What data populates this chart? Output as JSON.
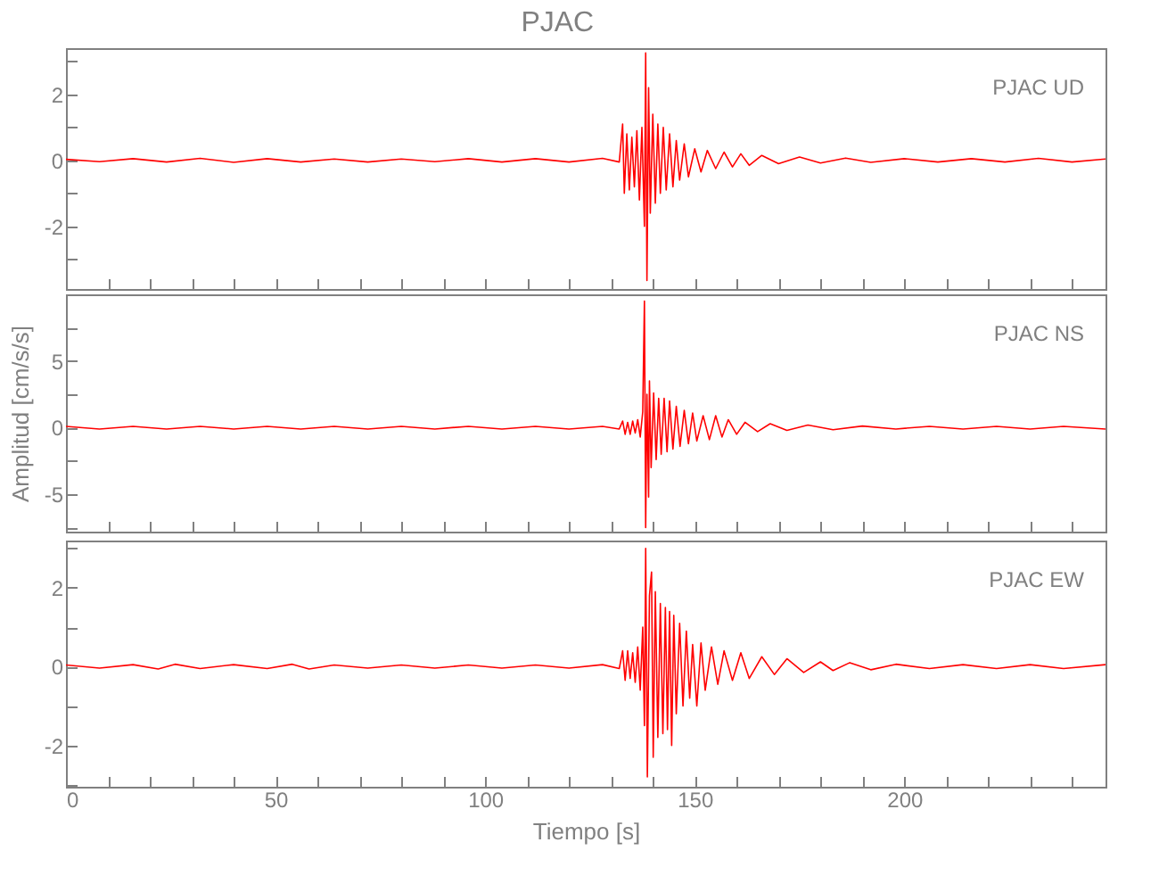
{
  "chart_data": [
    {
      "type": "line",
      "title": "PJAC",
      "annotations": [
        "PJAC   UD"
      ],
      "xlim": [
        0,
        248
      ],
      "ylim": [
        -3.9,
        3.4
      ],
      "tick_labels": "y",
      "xticks": [
        0,
        {
          "value": 10,
          "label": null
        },
        {
          "value": 20,
          "label": null
        },
        {
          "value": 30,
          "label": null
        },
        {
          "value": 40,
          "label": null
        },
        50,
        {
          "value": 60,
          "label": null
        },
        {
          "value": 70,
          "label": null
        },
        {
          "value": 80,
          "label": null
        },
        {
          "value": 90,
          "label": null
        },
        100,
        {
          "value": 110,
          "label": null
        },
        {
          "value": 120,
          "label": null
        },
        {
          "value": 130,
          "label": null
        },
        {
          "value": 140,
          "label": null
        },
        150,
        {
          "value": 160,
          "label": null
        },
        {
          "value": 170,
          "label": null
        },
        {
          "value": 180,
          "label": null
        },
        {
          "value": 190,
          "label": null
        },
        200,
        {
          "value": 210,
          "label": null
        },
        {
          "value": 220,
          "label": null
        },
        {
          "value": 230,
          "label": null
        },
        {
          "value": 240,
          "label": null
        }
      ],
      "yticks": [
        {
          "value": -3,
          "label": null
        },
        -2,
        {
          "value": -1,
          "label": null
        },
        0,
        {
          "value": 1,
          "label": null
        },
        2,
        {
          "value": 3,
          "label": null
        }
      ],
      "x": [
        0,
        8,
        16,
        24,
        32,
        40,
        48,
        56,
        64,
        72,
        80,
        88,
        96,
        104,
        112,
        120,
        128,
        132,
        132.8,
        133.2,
        133.8,
        134.4,
        135,
        135.6,
        136.2,
        136.8,
        137.4,
        138,
        138.3,
        138.6,
        139,
        139.4,
        140,
        140.6,
        141.2,
        141.8,
        142.5,
        143.2,
        144,
        144.8,
        145.6,
        146.4,
        147.5,
        148.5,
        150,
        151.5,
        153,
        155,
        157,
        159,
        161,
        163,
        166,
        170,
        175,
        180,
        186,
        192,
        200,
        208,
        216,
        224,
        232,
        240,
        248
      ],
      "series": [
        {
          "color": "#ff0000",
          "values": [
            0.03,
            -0.04,
            0.05,
            -0.05,
            0.06,
            -0.06,
            0.05,
            -0.05,
            0.04,
            -0.05,
            0.04,
            -0.04,
            0.05,
            -0.05,
            0.05,
            -0.05,
            0.06,
            -0.05,
            1.1,
            -1.0,
            0.8,
            -0.9,
            0.7,
            -0.8,
            0.9,
            -1.2,
            1.0,
            -2.0,
            3.26,
            -3.64,
            2.2,
            -1.6,
            1.4,
            -1.3,
            1.1,
            -1.0,
            1.0,
            -0.9,
            0.8,
            -0.8,
            0.6,
            -0.6,
            0.5,
            -0.5,
            0.35,
            -0.35,
            0.3,
            -0.25,
            0.25,
            -0.2,
            0.2,
            -0.15,
            0.15,
            -0.1,
            0.1,
            -0.08,
            0.07,
            -0.06,
            0.05,
            -0.05,
            0.05,
            -0.05,
            0.06,
            -0.05,
            0.04
          ]
        }
      ]
    },
    {
      "type": "line",
      "ylabel": "Amplitud [cm/s/s]",
      "annotations": [
        "PJAC   NS"
      ],
      "xlim": [
        0,
        248
      ],
      "ylim": [
        -7.8,
        10
      ],
      "tick_labels": "y",
      "xticks": [
        0,
        {
          "value": 10,
          "label": null
        },
        {
          "value": 20,
          "label": null
        },
        {
          "value": 30,
          "label": null
        },
        {
          "value": 40,
          "label": null
        },
        50,
        {
          "value": 60,
          "label": null
        },
        {
          "value": 70,
          "label": null
        },
        {
          "value": 80,
          "label": null
        },
        {
          "value": 90,
          "label": null
        },
        100,
        {
          "value": 110,
          "label": null
        },
        {
          "value": 120,
          "label": null
        },
        {
          "value": 130,
          "label": null
        },
        {
          "value": 140,
          "label": null
        },
        150,
        {
          "value": 160,
          "label": null
        },
        {
          "value": 170,
          "label": null
        },
        {
          "value": 180,
          "label": null
        },
        {
          "value": 190,
          "label": null
        },
        200,
        {
          "value": 210,
          "label": null
        },
        {
          "value": 220,
          "label": null
        },
        {
          "value": 230,
          "label": null
        },
        {
          "value": 240,
          "label": null
        }
      ],
      "yticks": [
        {
          "value": -7.5,
          "label": null
        },
        -5,
        {
          "value": -2.5,
          "label": null
        },
        0,
        {
          "value": 2.5,
          "label": null
        },
        5,
        {
          "value": 7.5,
          "label": null
        }
      ],
      "x": [
        0,
        8,
        16,
        24,
        32,
        40,
        48,
        56,
        64,
        72,
        80,
        88,
        96,
        104,
        112,
        120,
        128,
        132,
        132.8,
        133.4,
        134,
        134.6,
        135.2,
        135.8,
        136.4,
        137,
        137.6,
        138,
        138.3,
        138.6,
        139,
        139.2,
        139.6,
        140.2,
        140.8,
        141.4,
        142,
        142.7,
        143.4,
        144,
        144.8,
        145.6,
        146.5,
        147.5,
        148.5,
        149.5,
        150.5,
        152,
        153.5,
        155,
        156.5,
        158,
        160,
        162,
        165,
        168,
        172,
        177,
        183,
        190,
        198,
        206,
        214,
        222,
        230,
        238,
        248
      ],
      "series": [
        {
          "color": "#ff0000",
          "values": [
            0.1,
            -0.1,
            0.1,
            -0.1,
            0.1,
            -0.1,
            0.1,
            -0.1,
            0.1,
            -0.1,
            0.1,
            -0.1,
            0.1,
            -0.1,
            0.1,
            -0.1,
            0.1,
            -0.1,
            0.5,
            -0.5,
            0.4,
            -0.5,
            0.5,
            -0.4,
            0.6,
            -0.7,
            1.2,
            9.5,
            -7.5,
            2.5,
            -5.2,
            3.5,
            -3.0,
            2.6,
            -2.4,
            2.2,
            -2.0,
            2.2,
            -1.8,
            2.0,
            -1.6,
            1.6,
            -1.4,
            1.3,
            -1.2,
            1.1,
            -1.0,
            0.9,
            -0.9,
            0.9,
            -0.7,
            0.6,
            -0.5,
            0.4,
            -0.3,
            0.3,
            -0.2,
            0.2,
            -0.15,
            0.12,
            -0.1,
            0.1,
            -0.1,
            0.1,
            -0.1,
            0.1,
            -0.1
          ]
        }
      ]
    },
    {
      "type": "line",
      "xlabel": "Tiempo [s]",
      "annotations": [
        "PJAC   EW"
      ],
      "xlim": [
        0,
        248
      ],
      "ylim": [
        -3.05,
        3.2
      ],
      "xticks": [
        0,
        {
          "value": 10,
          "label": null
        },
        {
          "value": 20,
          "label": null
        },
        {
          "value": 30,
          "label": null
        },
        {
          "value": 40,
          "label": null
        },
        50,
        {
          "value": 60,
          "label": null
        },
        {
          "value": 70,
          "label": null
        },
        {
          "value": 80,
          "label": null
        },
        {
          "value": 90,
          "label": null
        },
        100,
        {
          "value": 110,
          "label": null
        },
        {
          "value": 120,
          "label": null
        },
        {
          "value": 130,
          "label": null
        },
        {
          "value": 140,
          "label": null
        },
        150,
        {
          "value": 160,
          "label": null
        },
        {
          "value": 170,
          "label": null
        },
        {
          "value": 180,
          "label": null
        },
        {
          "value": 190,
          "label": null
        },
        200,
        {
          "value": 210,
          "label": null
        },
        {
          "value": 220,
          "label": null
        },
        {
          "value": 230,
          "label": null
        },
        {
          "value": 240,
          "label": null
        }
      ],
      "yticks": [
        {
          "value": -3,
          "label": null
        },
        -2,
        {
          "value": -1,
          "label": null
        },
        0,
        {
          "value": 1,
          "label": null
        },
        2,
        {
          "value": 3,
          "label": null
        }
      ],
      "x": [
        0,
        8,
        16,
        22,
        26,
        32,
        40,
        48,
        54,
        58,
        64,
        72,
        80,
        88,
        96,
        104,
        112,
        120,
        128,
        132,
        132.8,
        133.4,
        134,
        134.6,
        135.2,
        135.8,
        136.4,
        137,
        137.6,
        138,
        138.3,
        138.7,
        139.2,
        139.7,
        140.1,
        140.6,
        141.2,
        141.8,
        142.4,
        143,
        143.5,
        144,
        144.5,
        145,
        145.6,
        146.4,
        147.2,
        148,
        148.8,
        149.5,
        150.5,
        151.5,
        152.5,
        154,
        155.5,
        157,
        159,
        161,
        163,
        166,
        169,
        172,
        176,
        180,
        183,
        187,
        192,
        198,
        206,
        214,
        222,
        230,
        238,
        248
      ],
      "series": [
        {
          "color": "#ff0000",
          "values": [
            0.04,
            -0.04,
            0.05,
            -0.06,
            0.06,
            -0.05,
            0.05,
            -0.05,
            0.06,
            -0.06,
            0.04,
            -0.04,
            0.04,
            -0.04,
            0.04,
            -0.04,
            0.04,
            -0.04,
            0.05,
            -0.05,
            0.4,
            -0.35,
            0.4,
            -0.3,
            0.35,
            -0.4,
            0.5,
            -0.6,
            1.0,
            -1.5,
            3.0,
            -2.8,
            1.8,
            2.4,
            -2.3,
            1.9,
            -1.8,
            1.6,
            -1.7,
            1.5,
            -1.6,
            1.4,
            -2.0,
            1.3,
            -1.2,
            1.1,
            -1.0,
            0.9,
            -0.8,
            0.56,
            -1.0,
            0.6,
            -0.6,
            0.5,
            -0.45,
            0.4,
            -0.35,
            0.35,
            -0.3,
            0.25,
            -0.2,
            0.2,
            -0.15,
            0.12,
            -0.1,
            0.1,
            -0.08,
            0.06,
            -0.05,
            0.05,
            -0.05,
            0.05,
            -0.05,
            0.05
          ]
        }
      ]
    }
  ]
}
